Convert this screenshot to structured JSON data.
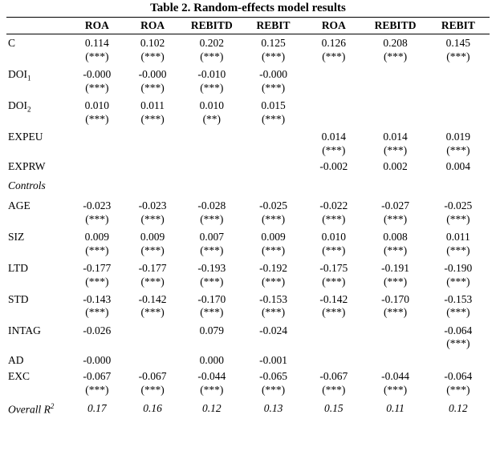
{
  "title": "Table 2. Random-effects model results",
  "columns": [
    "ROA",
    "ROA",
    "REBITD",
    "REBIT",
    "ROA",
    "REBITD",
    "REBIT"
  ],
  "col_widths_pct": [
    13,
    11.5,
    11.5,
    13,
    12.5,
    12.5,
    13,
    13
  ],
  "font": {
    "family": "Times New Roman",
    "title_size_pt": 15,
    "body_size_pt": 13.5
  },
  "colors": {
    "text": "#000000",
    "background": "#ffffff",
    "rule": "#000000"
  },
  "rows": [
    {
      "label": "C",
      "cells": [
        {
          "v": "0.114",
          "s": "(***)"
        },
        {
          "v": "0.102",
          "s": "(***)"
        },
        {
          "v": "0.202",
          "s": "(***)"
        },
        {
          "v": "0.125",
          "s": "(***)"
        },
        {
          "v": "0.126",
          "s": "(***)"
        },
        {
          "v": "0.208",
          "s": "(***)"
        },
        {
          "v": "0.145",
          "s": "(***)"
        }
      ]
    },
    {
      "label_html": "DOI<span class='sub'>1</span>",
      "label": "DOI1",
      "cells": [
        {
          "v": "-0.000",
          "s": "(***)"
        },
        {
          "v": "-0.000",
          "s": "(***)"
        },
        {
          "v": "-0.010",
          "s": "(***)"
        },
        {
          "v": "-0.000",
          "s": "(***)"
        },
        null,
        null,
        null
      ]
    },
    {
      "label_html": "DOI<span class='sub'>2</span>",
      "label": "DOI2",
      "cells": [
        {
          "v": "0.010",
          "s": "(***)"
        },
        {
          "v": "0.011",
          "s": "(***)"
        },
        {
          "v": "0.010",
          "s": "(**)"
        },
        {
          "v": "0.015",
          "s": "(***)"
        },
        null,
        null,
        null
      ]
    },
    {
      "label": "EXPEU",
      "cells": [
        null,
        null,
        null,
        null,
        {
          "v": "0.014",
          "s": "(***)"
        },
        {
          "v": "0.014",
          "s": "(***)"
        },
        {
          "v": "0.019",
          "s": "(***)"
        }
      ]
    },
    {
      "label": "EXPRW",
      "cells": [
        null,
        null,
        null,
        null,
        {
          "v": "-0.002"
        },
        {
          "v": "0.002"
        },
        {
          "v": "0.004"
        }
      ]
    },
    {
      "controls": true,
      "label": "Controls"
    },
    {
      "label": "AGE",
      "cells": [
        {
          "v": "-0.023",
          "s": "(***)"
        },
        {
          "v": "-0.023",
          "s": "(***)"
        },
        {
          "v": "-0.028",
          "s": "(***)"
        },
        {
          "v": "-0.025",
          "s": "(***)"
        },
        {
          "v": "-0.022",
          "s": "(***)"
        },
        {
          "v": "-0.027",
          "s": "(***)"
        },
        {
          "v": "-0.025",
          "s": "(***)"
        }
      ]
    },
    {
      "label": "SIZ",
      "cells": [
        {
          "v": "0.009",
          "s": "(***)"
        },
        {
          "v": "0.009",
          "s": "(***)"
        },
        {
          "v": "0.007",
          "s": "(***)"
        },
        {
          "v": "0.009",
          "s": "(***)"
        },
        {
          "v": "0.010",
          "s": "(***)"
        },
        {
          "v": "0.008",
          "s": "(***)"
        },
        {
          "v": "0.011",
          "s": "(***)"
        }
      ]
    },
    {
      "label": "LTD",
      "cells": [
        {
          "v": "-0.177",
          "s": "(***)"
        },
        {
          "v": "-0.177",
          "s": "(***)"
        },
        {
          "v": "-0.193",
          "s": "(***)"
        },
        {
          "v": "-0.192",
          "s": "(***)"
        },
        {
          "v": "-0.175",
          "s": "(***)"
        },
        {
          "v": "-0.191",
          "s": "(***)"
        },
        {
          "v": "-0.190",
          "s": "(***)"
        }
      ]
    },
    {
      "label": "STD",
      "cells": [
        {
          "v": "-0.143",
          "s": "(***)"
        },
        {
          "v": "-0.142",
          "s": "(***)"
        },
        {
          "v": "-0.170",
          "s": "(***)"
        },
        {
          "v": "-0.153",
          "s": "(***)"
        },
        {
          "v": "-0.142",
          "s": "(***)"
        },
        {
          "v": "-0.170",
          "s": "(***)"
        },
        {
          "v": "-0.153",
          "s": "(***)"
        }
      ]
    },
    {
      "label": "INTAG",
      "cells": [
        {
          "v": "-0.026"
        },
        null,
        {
          "v": "0.079"
        },
        {
          "v": "-0.024"
        },
        null,
        null,
        {
          "v": "-0.064",
          "s": "(***)"
        }
      ]
    },
    {
      "label": "AD",
      "cells": [
        {
          "v": "-0.000"
        },
        null,
        {
          "v": "0.000"
        },
        {
          "v": "-0.001"
        },
        null,
        null,
        null
      ]
    },
    {
      "label": "EXC",
      "cells": [
        {
          "v": "-0.067",
          "s": "(***)"
        },
        {
          "v": "-0.067",
          "s": "(***)"
        },
        {
          "v": "-0.044",
          "s": "(***)"
        },
        {
          "v": "-0.065",
          "s": "(***)"
        },
        {
          "v": "-0.067",
          "s": "(***)"
        },
        {
          "v": "-0.044",
          "s": "(***)"
        },
        {
          "v": "-0.064",
          "s": "(***)"
        }
      ]
    }
  ],
  "overall": {
    "label_html": "Overall R<span class='sup'>2</span>",
    "label": "Overall R2",
    "values": [
      "0.17",
      "0.16",
      "0.12",
      "0.13",
      "0.15",
      "0.11",
      "0.12"
    ]
  }
}
